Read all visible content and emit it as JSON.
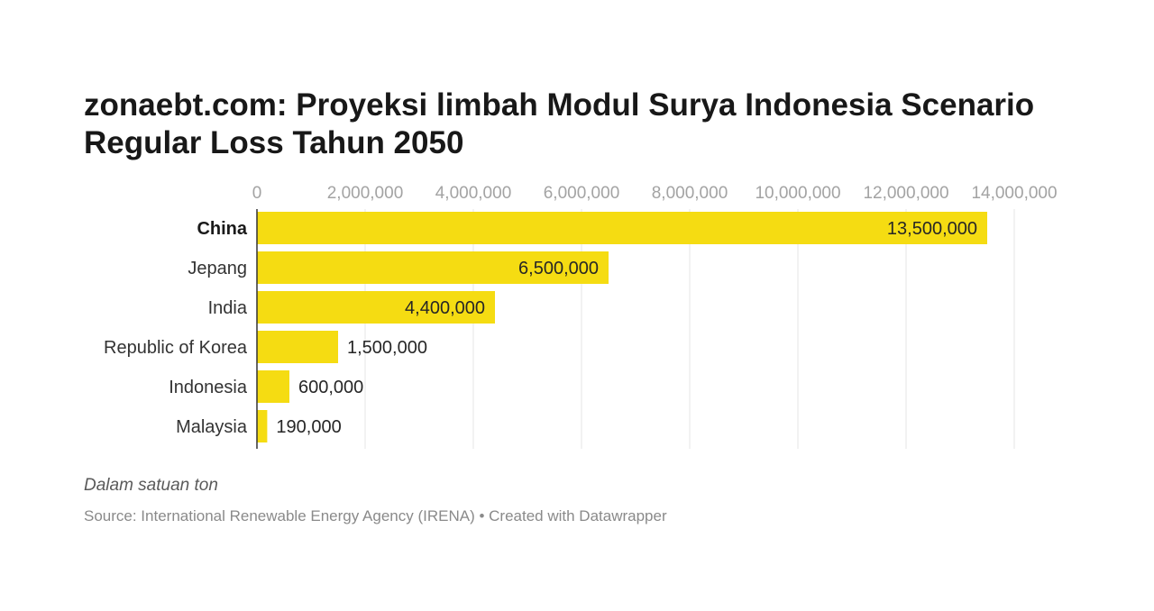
{
  "chart_data": {
    "type": "bar",
    "orientation": "horizontal",
    "title": "zonaebt.com: Proyeksi limbah Modul Surya Indonesia Scenario Regular Loss Tahun 2050",
    "categories": [
      "China",
      "Jepang",
      "India",
      "Republic of Korea",
      "Indonesia",
      "Malaysia"
    ],
    "values": [
      13500000,
      6500000,
      4400000,
      1500000,
      600000,
      190000
    ],
    "value_labels": [
      "13,500,000",
      "6,500,000",
      "4,400,000",
      "1,500,000",
      "600,000",
      "190,000"
    ],
    "highlighted_category": "China",
    "xlim": [
      0,
      14000000
    ],
    "ticks": [
      0,
      2000000,
      4000000,
      6000000,
      8000000,
      10000000,
      12000000,
      14000000
    ],
    "tick_labels": [
      "0",
      "2,000,000",
      "4,000,000",
      "6,000,000",
      "8,000,000",
      "10,000,000",
      "12,000,000",
      "14,000,000"
    ],
    "tick_position": "top",
    "grid": true,
    "bar_color": "#f5dc12",
    "grid_color": "#e5e5e5",
    "baseline_color": "#333333"
  },
  "footer": {
    "note": "Dalam satuan ton",
    "source": "Source: International Renewable Energy Agency (IRENA) • Created with Datawrapper"
  }
}
